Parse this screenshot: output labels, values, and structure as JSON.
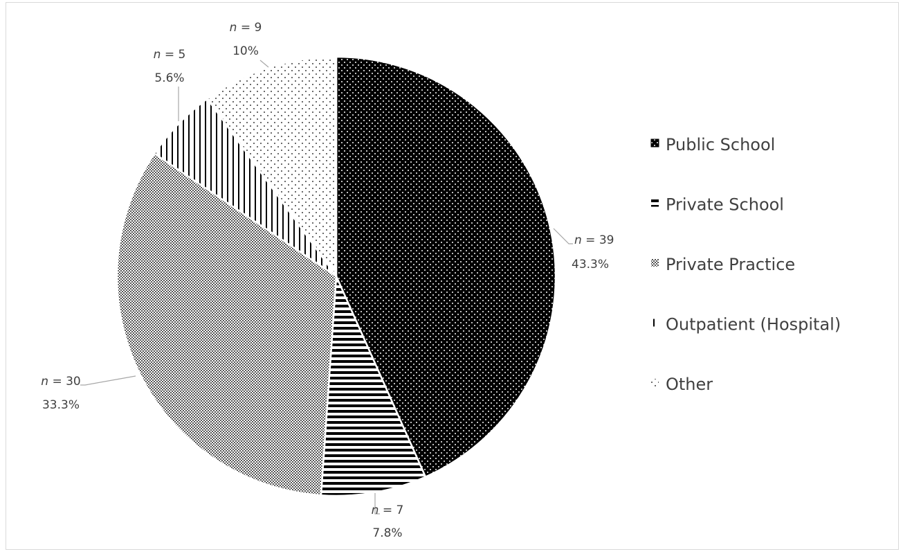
{
  "chart_data": {
    "type": "pie",
    "title": "",
    "legend_position": "right",
    "slices": [
      {
        "name": "Public School",
        "n_label": "n",
        "n_value": "= 39",
        "value": 39,
        "percent_label": "43.3%",
        "pattern": "dots-on-black"
      },
      {
        "name": "Private School",
        "n_label": "n",
        "n_value": "= 7",
        "value": 7,
        "percent_label": "7.8%",
        "pattern": "horizontal-lines"
      },
      {
        "name": "Private Practice",
        "n_label": "n",
        "n_value": "= 30",
        "value": 30,
        "percent_label": "33.3%",
        "pattern": "dense-checker"
      },
      {
        "name": "Outpatient (Hospital)",
        "n_label": "n",
        "n_value": "= 5",
        "value": 5,
        "percent_label": "5.6%",
        "pattern": "vertical-lines"
      },
      {
        "name": "Other",
        "n_label": "n",
        "n_value": "= 9",
        "value": 9,
        "percent_label": "10%",
        "pattern": "sparse-dots"
      }
    ]
  }
}
